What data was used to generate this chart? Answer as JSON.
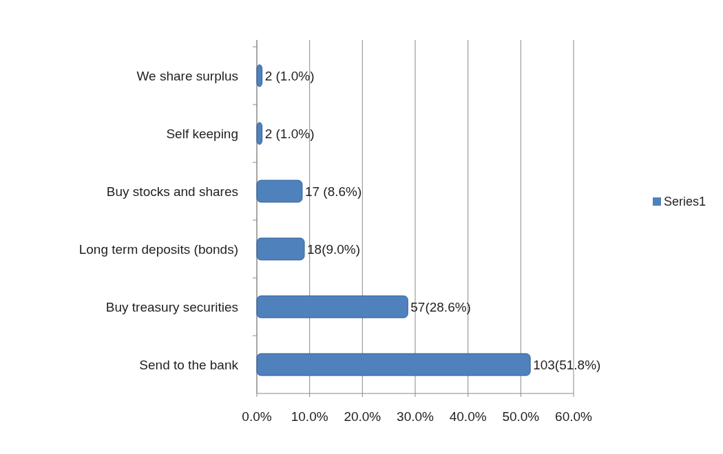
{
  "chart_data": {
    "type": "bar",
    "orientation": "horizontal",
    "categories": [
      "We share surplus",
      "Self keeping",
      "Buy stocks and shares",
      "Long term deposits (bonds)",
      "Buy treasury securities",
      "Send to the bank"
    ],
    "series": [
      {
        "name": "Series1",
        "color": "#4f81bd",
        "values": [
          1.0,
          1.0,
          8.6,
          9.0,
          28.6,
          51.8
        ],
        "value_labels": [
          "2 (1.0%)",
          "2 (1.0%)",
          "17 (8.6%)",
          "18(9.0%)",
          "57(28.6%)",
          "103(51.8%)"
        ]
      }
    ],
    "xlim": [
      0,
      60
    ],
    "xticks": [
      {
        "value": 0,
        "label": "0.0%"
      },
      {
        "value": 10,
        "label": "10.0%"
      },
      {
        "value": 20,
        "label": "20.0%"
      },
      {
        "value": 30,
        "label": "30.0%"
      },
      {
        "value": 40,
        "label": "40.0%"
      },
      {
        "value": 50,
        "label": "50.0%"
      },
      {
        "value": 60,
        "label": "60.0%"
      }
    ],
    "grid": "x",
    "legend": "right"
  }
}
